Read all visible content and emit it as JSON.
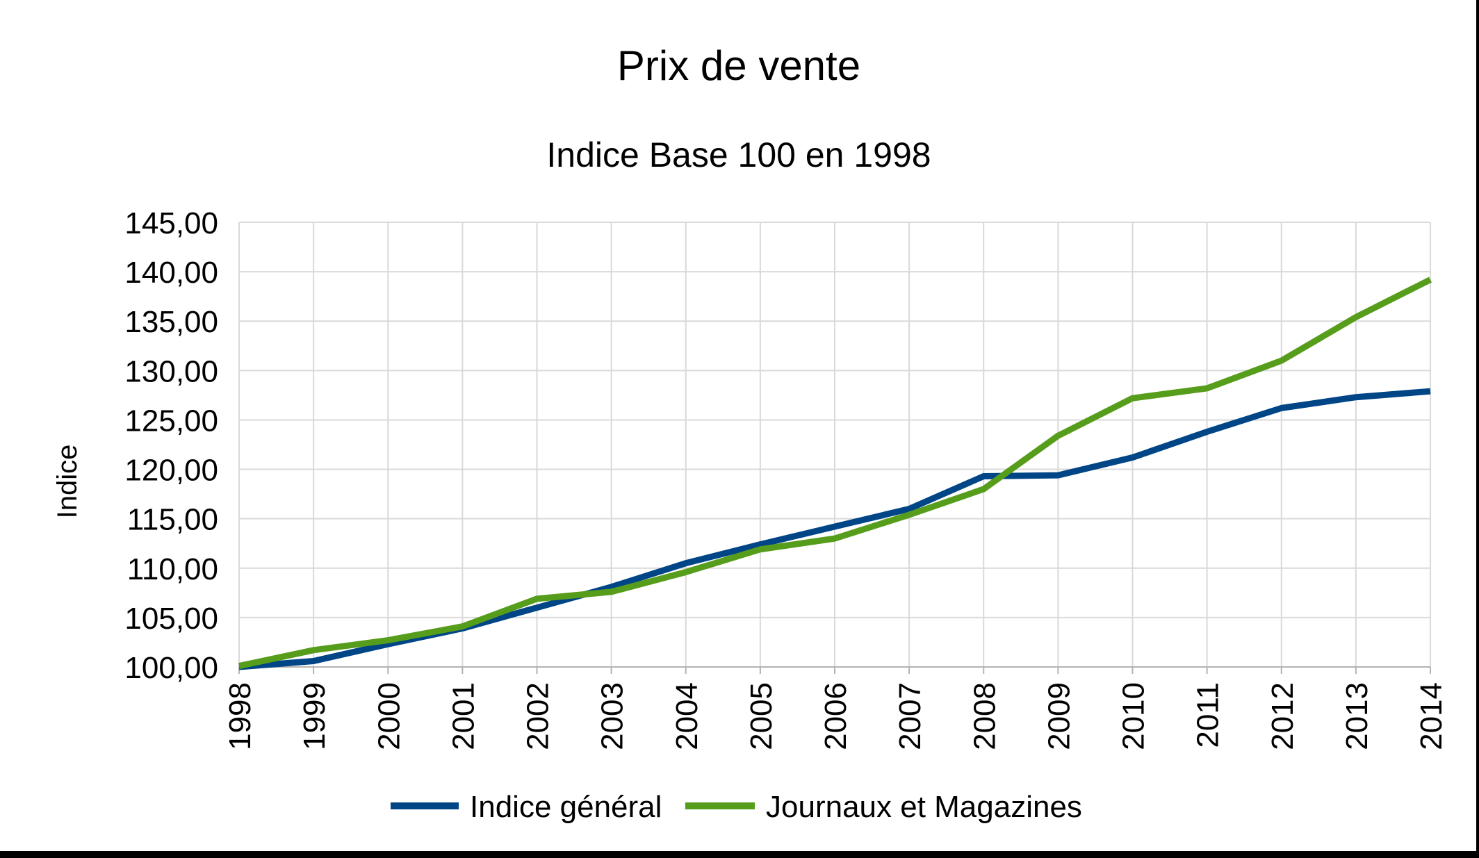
{
  "chart_data": {
    "type": "line",
    "title": "Prix de vente",
    "subtitle": "Indice Base 100 en 1998",
    "ylabel": "Indice",
    "xlabel": "",
    "ylim": [
      100,
      145
    ],
    "y_ticks": [
      "100,00",
      "105,00",
      "110,00",
      "115,00",
      "120,00",
      "125,00",
      "130,00",
      "135,00",
      "140,00",
      "145,00"
    ],
    "y_tick_values": [
      100,
      105,
      110,
      115,
      120,
      125,
      130,
      135,
      140,
      145
    ],
    "categories": [
      "1998",
      "1999",
      "2000",
      "2001",
      "2002",
      "2003",
      "2004",
      "2005",
      "2006",
      "2007",
      "2008",
      "2009",
      "2010",
      "2011",
      "2012",
      "2013",
      "2014"
    ],
    "grid": true,
    "legend_position": "bottom",
    "series": [
      {
        "name": "Indice général",
        "color": "#004586",
        "values": [
          100.0,
          100.6,
          102.3,
          103.9,
          106.0,
          108.1,
          110.5,
          112.4,
          114.2,
          116.0,
          119.3,
          119.4,
          121.2,
          123.8,
          126.2,
          127.3,
          127.9
        ]
      },
      {
        "name": "Journaux et Magazines",
        "color": "#579d1c",
        "values": [
          100.1,
          101.7,
          102.7,
          104.1,
          106.9,
          107.6,
          109.6,
          111.9,
          113.0,
          115.4,
          118.0,
          123.4,
          127.2,
          128.2,
          131.0,
          135.4,
          139.2
        ]
      }
    ]
  }
}
